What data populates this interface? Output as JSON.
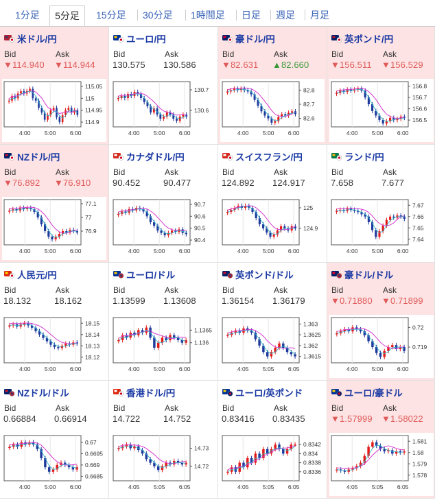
{
  "tabs": [
    "1分足",
    "5分足",
    "15分足",
    "30分足",
    "1時間足",
    "日足",
    "週足",
    "月足"
  ],
  "active_tab": 1,
  "colors": {
    "alert_bg": "#fde3e3",
    "candle_up": "#e21b1b",
    "candle_down": "#1f3a9c",
    "ma_line": "#d63ad0",
    "ma_line2": "#2bb5c8",
    "price_down": "#e05a5a",
    "price_up": "#3a9a3a",
    "link": "#1b3aa4"
  },
  "cards": [
    {
      "pair": "米ドル/円",
      "flag": "us-jp-flag",
      "alert": true,
      "bid": "▼114.940",
      "ask": "▼114.944",
      "bid_dir": "down",
      "ask_dir": "down",
      "chart_data": {
        "type": "candlestick",
        "y_ticks": [
          "115.05",
          "115",
          "114.95",
          "114.9"
        ],
        "x_ticks": [
          "4:00",
          "5:00",
          "6:00"
        ],
        "ylim": [
          114.88,
          115.07
        ],
        "close": [
          114.99,
          115.01,
          115.0,
          115.02,
          115.03,
          115.02,
          115.03,
          115.04,
          115.0,
          114.99,
          114.96,
          114.94,
          114.91,
          114.93,
          114.95,
          114.96,
          114.92,
          114.9,
          114.93,
          114.95,
          114.96,
          114.94,
          114.95,
          114.93
        ]
      }
    },
    {
      "pair": "ユーロ/円",
      "flag": "eu-jp-flag",
      "alert": false,
      "bid": "130.575",
      "ask": "130.586",
      "bid_dir": "none",
      "ask_dir": "none",
      "chart_data": {
        "type": "candlestick",
        "y_ticks": [
          "130.7",
          "130.6"
        ],
        "x_ticks": [
          "4:00",
          "5:00",
          "6:00"
        ],
        "ylim": [
          130.52,
          130.74
        ],
        "close": [
          130.66,
          130.67,
          130.66,
          130.68,
          130.67,
          130.69,
          130.68,
          130.66,
          130.64,
          130.62,
          130.59,
          130.61,
          130.58,
          130.56,
          130.57,
          130.59,
          130.58,
          130.56,
          130.55,
          130.57,
          130.58,
          130.57
        ]
      }
    },
    {
      "pair": "豪ドル/円",
      "flag": "au-jp-flag",
      "alert": true,
      "bid": "▼82.631",
      "ask": "▲82.660",
      "bid_dir": "down",
      "ask_dir": "up",
      "chart_data": {
        "type": "candlestick",
        "y_ticks": [
          "82.8",
          "82.7",
          "82.6"
        ],
        "x_ticks": [
          "4:00",
          "5:00",
          "6:00"
        ],
        "ylim": [
          82.54,
          82.86
        ],
        "close": [
          82.79,
          82.8,
          82.81,
          82.8,
          82.81,
          82.8,
          82.79,
          82.77,
          82.73,
          82.69,
          82.65,
          82.62,
          82.6,
          82.57,
          82.58,
          82.61,
          82.63,
          82.62,
          82.64,
          82.65,
          82.63
        ]
      }
    },
    {
      "pair": "英ポンド/円",
      "flag": "gb-jp-flag",
      "alert": true,
      "bid": "▼156.511",
      "ask": "▼156.529",
      "bid_dir": "down",
      "ask_dir": "down",
      "chart_data": {
        "type": "candlestick",
        "y_ticks": [
          "156.8",
          "156.7",
          "156.6",
          "156.5"
        ],
        "x_ticks": [
          "4:00",
          "5:00",
          "6:00"
        ],
        "ylim": [
          156.44,
          156.84
        ],
        "close": [
          156.74,
          156.76,
          156.75,
          156.77,
          156.76,
          156.77,
          156.78,
          156.76,
          156.7,
          156.64,
          156.58,
          156.54,
          156.5,
          156.47,
          156.49,
          156.52,
          156.5,
          156.51,
          156.53,
          156.52
        ]
      }
    },
    {
      "pair": "NZドル/円",
      "flag": "nz-jp-flag",
      "alert": true,
      "bid": "▼76.892",
      "ask": "▼76.910",
      "bid_dir": "down",
      "ask_dir": "down",
      "chart_data": {
        "type": "candlestick",
        "y_ticks": [
          "77.1",
          "77",
          "76.9"
        ],
        "x_ticks": [
          "4:00",
          "5:00",
          "6:00"
        ],
        "ylim": [
          76.8,
          77.13
        ],
        "close": [
          77.05,
          77.06,
          77.05,
          77.07,
          77.06,
          77.07,
          77.06,
          77.04,
          77.0,
          76.95,
          76.9,
          76.86,
          76.84,
          76.86,
          76.88,
          76.9,
          76.89,
          76.91,
          76.9,
          76.89
        ]
      }
    },
    {
      "pair": "カナダドル/円",
      "flag": "ca-jp-flag",
      "alert": false,
      "bid": "90.452",
      "ask": "90.477",
      "bid_dir": "none",
      "ask_dir": "none",
      "chart_data": {
        "type": "candlestick",
        "y_ticks": [
          "90.7",
          "90.6",
          "90.5",
          "90.4"
        ],
        "x_ticks": [
          "4:00",
          "5:00",
          "6:00"
        ],
        "ylim": [
          90.36,
          90.74
        ],
        "close": [
          90.62,
          90.64,
          90.63,
          90.66,
          90.65,
          90.67,
          90.66,
          90.64,
          90.6,
          90.55,
          90.52,
          90.48,
          90.46,
          90.44,
          90.46,
          90.48,
          90.47,
          90.49,
          90.46,
          90.45
        ]
      }
    },
    {
      "pair": "スイスフラン/円",
      "flag": "ch-jp-flag",
      "alert": false,
      "bid": "124.892",
      "ask": "124.917",
      "bid_dir": "none",
      "ask_dir": "none",
      "chart_data": {
        "type": "candlestick",
        "y_ticks": [
          "125",
          "124.9"
        ],
        "x_ticks": [
          "4:00",
          "5:00",
          "6:00"
        ],
        "ylim": [
          124.82,
          125.04
        ],
        "close": [
          124.98,
          124.99,
          125.0,
          125.01,
          125.0,
          125.01,
          125.0,
          124.98,
          124.95,
          124.92,
          124.9,
          124.88,
          124.86,
          124.87,
          124.89,
          124.91,
          124.9,
          124.89,
          124.91,
          124.9
        ]
      }
    },
    {
      "pair": "ランド/円",
      "flag": "za-jp-flag",
      "alert": false,
      "bid": "7.658",
      "ask": "7.677",
      "bid_dir": "none",
      "ask_dir": "none",
      "chart_data": {
        "type": "candlestick",
        "y_ticks": [
          "7.67",
          "7.66",
          "7.65",
          "7.64"
        ],
        "x_ticks": [
          "4:00",
          "5:00",
          "6:00"
        ],
        "ylim": [
          7.635,
          7.675
        ],
        "close": [
          7.665,
          7.666,
          7.665,
          7.667,
          7.666,
          7.665,
          7.664,
          7.662,
          7.66,
          7.655,
          7.648,
          7.642,
          7.647,
          7.652,
          7.657,
          7.66,
          7.659,
          7.661,
          7.66,
          7.658
        ]
      }
    },
    {
      "pair": "人民元/円",
      "flag": "cn-jp-flag",
      "alert": false,
      "bid": "18.132",
      "ask": "18.162",
      "bid_dir": "none",
      "ask_dir": "none",
      "chart_data": {
        "type": "candlestick",
        "y_ticks": [
          "18.15",
          "18.14",
          "18.13",
          "18.12"
        ],
        "x_ticks": [
          "4:00",
          "5:00",
          "6:00"
        ],
        "ylim": [
          18.115,
          18.155
        ],
        "close": [
          18.148,
          18.149,
          18.147,
          18.149,
          18.15,
          18.148,
          18.146,
          18.143,
          18.14,
          18.137,
          18.134,
          18.131,
          18.129,
          18.128,
          18.13,
          18.132,
          18.131,
          18.133,
          18.132
        ]
      }
    },
    {
      "pair": "ユーロ/ドル",
      "flag": "eu-us-flag",
      "alert": false,
      "bid": "1.13599",
      "ask": "1.13608",
      "bid_dir": "none",
      "ask_dir": "none",
      "chart_data": {
        "type": "candlestick",
        "y_ticks": [
          "1.1365",
          "1.136"
        ],
        "x_ticks": [
          "4:00",
          "5:00",
          "6:00"
        ],
        "ylim": [
          1.1352,
          1.137
        ],
        "close": [
          1.1361,
          1.1363,
          1.1362,
          1.1364,
          1.1363,
          1.1365,
          1.1364,
          1.1366,
          1.1362,
          1.1358,
          1.136,
          1.1362,
          1.1361,
          1.1363,
          1.1362,
          1.1361,
          1.136,
          1.1361
        ]
      }
    },
    {
      "pair": "英ポンド/ドル",
      "flag": "gb-us-flag",
      "alert": false,
      "bid": "1.36154",
      "ask": "1.36179",
      "bid_dir": "none",
      "ask_dir": "none",
      "chart_data": {
        "type": "candlestick",
        "y_ticks": [
          "1.363",
          "1.3625",
          "1.362",
          "1.3615"
        ],
        "x_ticks": [
          "4:05",
          "5:05",
          "6:05"
        ],
        "ylim": [
          1.3612,
          1.3633
        ],
        "close": [
          1.3625,
          1.3626,
          1.3627,
          1.3626,
          1.3628,
          1.3627,
          1.3626,
          1.3623,
          1.362,
          1.3617,
          1.3615,
          1.3617,
          1.3619,
          1.3621,
          1.3619,
          1.3617,
          1.3616,
          1.3615
        ]
      }
    },
    {
      "pair": "豪ドル/ドル",
      "flag": "au-us-flag",
      "alert": true,
      "bid": "▼0.71880",
      "ask": "▼0.71899",
      "bid_dir": "down",
      "ask_dir": "down",
      "chart_data": {
        "type": "candlestick",
        "y_ticks": [
          "0.72",
          "0.719"
        ],
        "x_ticks": [
          "4:00",
          "5:00",
          "6:00"
        ],
        "ylim": [
          0.7182,
          0.7205
        ],
        "close": [
          0.7197,
          0.7198,
          0.7199,
          0.7198,
          0.72,
          0.7199,
          0.7198,
          0.7196,
          0.7193,
          0.719,
          0.7187,
          0.7185,
          0.7188,
          0.719,
          0.7191,
          0.7189,
          0.719,
          0.7188
        ]
      }
    },
    {
      "pair": "NZドル/ドル",
      "flag": "nz-us-flag",
      "alert": false,
      "bid": "0.66884",
      "ask": "0.66914",
      "bid_dir": "none",
      "ask_dir": "none",
      "chart_data": {
        "type": "candlestick",
        "y_ticks": [
          "0.67",
          "0.6695",
          "0.669",
          "0.6685"
        ],
        "x_ticks": [
          "4:00",
          "5:00",
          "6:00"
        ],
        "ylim": [
          0.6683,
          0.6703
        ],
        "close": [
          0.6698,
          0.6699,
          0.6698,
          0.67,
          0.6699,
          0.67,
          0.6699,
          0.6697,
          0.6693,
          0.6689,
          0.6687,
          0.6688,
          0.669,
          0.6691,
          0.669,
          0.6689,
          0.6688,
          0.6689
        ]
      }
    },
    {
      "pair": "香港ドル/円",
      "flag": "hk-jp-flag",
      "alert": false,
      "bid": "14.722",
      "ask": "14.752",
      "bid_dir": "none",
      "ask_dir": "none",
      "chart_data": {
        "type": "candlestick",
        "y_ticks": [
          "14.73",
          "14.72"
        ],
        "x_ticks": [
          "4:05",
          "5:05",
          "6:05"
        ],
        "ylim": [
          14.712,
          14.737
        ],
        "close": [
          14.73,
          14.731,
          14.732,
          14.73,
          14.731,
          14.729,
          14.727,
          14.724,
          14.722,
          14.72,
          14.718,
          14.72,
          14.722,
          14.721,
          14.723,
          14.722,
          14.721,
          14.722
        ]
      }
    },
    {
      "pair": "ユーロ/英ポンド",
      "flag": "eu-gb-flag",
      "alert": false,
      "bid": "0.83416",
      "ask": "0.83435",
      "bid_dir": "none",
      "ask_dir": "none",
      "chart_data": {
        "type": "candlestick",
        "y_ticks": [
          "0.8342",
          "0.834",
          "0.8338",
          "0.8336"
        ],
        "x_ticks": [
          "4:05",
          "5:05",
          "6:05"
        ],
        "ylim": [
          0.8334,
          0.8344
        ],
        "close": [
          0.8336,
          0.8337,
          0.8336,
          0.8338,
          0.8337,
          0.8339,
          0.8338,
          0.834,
          0.8339,
          0.8341,
          0.834,
          0.8341,
          0.8342,
          0.8341,
          0.834,
          0.8341,
          0.8342,
          0.8342
        ]
      }
    },
    {
      "pair": "ユーロ/豪ドル",
      "flag": "eu-au-flag",
      "alert": true,
      "bid": "▼1.57999",
      "ask": "▼1.58022",
      "bid_dir": "down",
      "ask_dir": "down",
      "chart_data": {
        "type": "candlestick",
        "y_ticks": [
          "1.581",
          "1.58",
          "1.579",
          "1.578"
        ],
        "x_ticks": [
          "4:05",
          "5:05",
          "6:05"
        ],
        "ylim": [
          1.5775,
          1.5815
        ],
        "close": [
          1.5785,
          1.5784,
          1.5783,
          1.5785,
          1.5786,
          1.5788,
          1.5791,
          1.5797,
          1.5805,
          1.5809,
          1.5806,
          1.5803,
          1.5801,
          1.5802,
          1.5799,
          1.5801,
          1.58,
          1.5801
        ]
      }
    }
  ],
  "labels": {
    "bid": "Bid",
    "ask": "Ask"
  }
}
